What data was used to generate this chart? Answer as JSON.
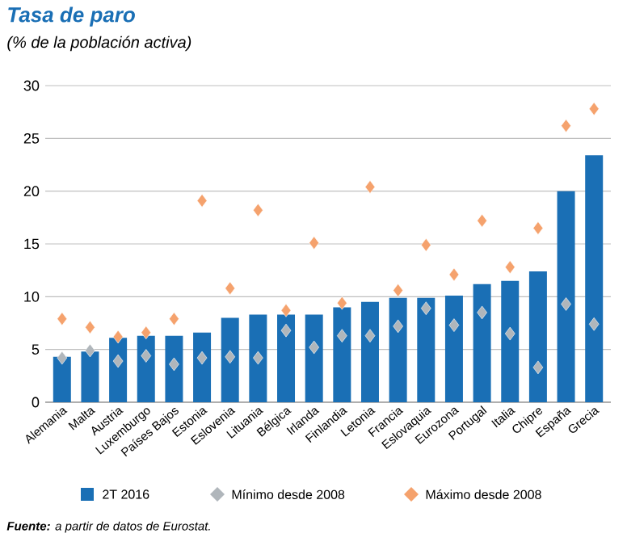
{
  "chart_data": {
    "type": "bar",
    "title": "Tasa de paro",
    "subtitle": "(% de la población activa)",
    "categories": [
      "Alemania",
      "Malta",
      "Austria",
      "Luxemburgo",
      "Países Bajos",
      "Estonia",
      "Eslovenia",
      "Lituania",
      "Bélgica",
      "Irlanda",
      "Finlandia",
      "Letonia",
      "Francia",
      "Eslovaquia",
      "Eurozona",
      "Portugal",
      "Italia",
      "Chipre",
      "España",
      "Grecia"
    ],
    "series": [
      {
        "name": "2T 2016",
        "type": "bar",
        "color": "#1a6fb5",
        "values": [
          4.3,
          4.8,
          6.1,
          6.3,
          6.3,
          6.6,
          8.0,
          8.3,
          8.3,
          8.3,
          9.0,
          9.5,
          9.9,
          9.9,
          10.1,
          11.2,
          11.5,
          12.4,
          20.0,
          23.4
        ]
      },
      {
        "name": "Mínimo desde 2008",
        "type": "scatter",
        "marker": "diamond",
        "color": "#b0b6bb",
        "x": [
          "Alemania",
          "Malta",
          "Austria",
          "Luxemburgo",
          "Países Bajos",
          "Estonia",
          "Eslovenia",
          "Lituania",
          "Bélgica",
          "Irlanda",
          "Finlandia",
          "Letonia",
          "Francia",
          "Eslovaquia",
          "Eurozona",
          "Portugal",
          "Italia",
          "Chipre",
          "España",
          "Grecia"
        ],
        "values": [
          4.2,
          4.9,
          3.9,
          4.4,
          3.6,
          4.2,
          4.3,
          4.2,
          6.8,
          5.2,
          6.3,
          6.3,
          7.2,
          8.9,
          7.3,
          8.5,
          6.5,
          3.3,
          9.3,
          7.4
        ]
      },
      {
        "name": "Máximo desde 2008",
        "type": "scatter",
        "marker": "diamond",
        "color": "#f5a26d",
        "x": [
          "Alemania",
          "Malta",
          "Austria",
          "Luxemburgo",
          "Países Bajos",
          "Estonia",
          "Eslovenia",
          "Lituania",
          "Bélgica",
          "Irlanda",
          "Finlandia",
          "Letonia",
          "Francia",
          "Eslovaquia",
          "Eurozona",
          "Portugal",
          "Italia",
          "Chipre",
          "España",
          "Grecia"
        ],
        "values": [
          7.9,
          7.1,
          6.2,
          6.6,
          7.9,
          19.1,
          10.8,
          18.2,
          8.7,
          15.1,
          9.4,
          20.4,
          10.6,
          14.9,
          12.1,
          17.2,
          12.8,
          16.5,
          26.2,
          27.8
        ]
      }
    ],
    "ylim": [
      0,
      30
    ],
    "yticks": [
      0,
      5,
      10,
      15,
      20,
      25,
      30
    ],
    "grid": "y",
    "legend": "bottom",
    "annotations": [
      "**Fuente:** a partir de datos de Eurostat."
    ]
  }
}
